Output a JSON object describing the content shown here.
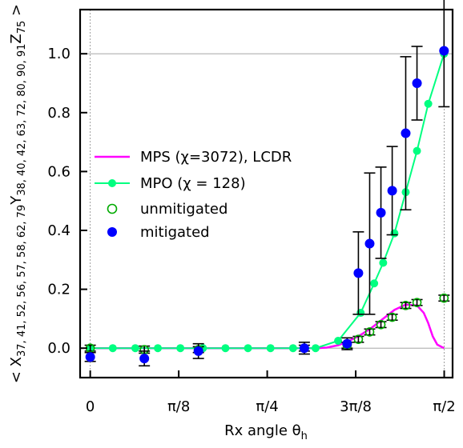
{
  "chart_data": {
    "type": "line",
    "title": "",
    "xlabel": "Rx angle θ_h",
    "ylabel": "< X_{37, 41, 52, 56, 57, 58, 62, 79} Y_{38, 40, 42, 63, 72, 80, 90, 91} Z_{75} >",
    "ylabel_parts": {
      "open": "< X",
      "x_sub": "37, 41, 52, 56, 57, 58, 62, 79",
      "y_main": "Y",
      "y_sub": "38, 40, 42, 63, 72, 80, 90, 91",
      "z_main": "Z",
      "z_sub": "75",
      "close": " >"
    },
    "xlabel_parts": {
      "main": "Rx angle θ",
      "sub": "h"
    },
    "xlim": [
      -0.045,
      1.608
    ],
    "ylim": [
      -0.1,
      1.15
    ],
    "x_ticks": [
      {
        "value": 0,
        "label": "0"
      },
      {
        "value": 0.3927,
        "label": "π/8"
      },
      {
        "value": 0.7854,
        "label": "π/4"
      },
      {
        "value": 1.1781,
        "label": "3π/8"
      },
      {
        "value": 1.5708,
        "label": "π/2"
      }
    ],
    "y_ticks": [
      {
        "value": 0.0,
        "label": "0.0"
      },
      {
        "value": 0.2,
        "label": "0.2"
      },
      {
        "value": 0.4,
        "label": "0.4"
      },
      {
        "value": 0.6,
        "label": "0.6"
      },
      {
        "value": 0.8,
        "label": "0.8"
      },
      {
        "value": 1.0,
        "label": "1.0"
      }
    ],
    "reference_lines": {
      "horizontal": [
        0.0,
        1.0
      ],
      "vertical": [
        0,
        1.5708
      ]
    },
    "legend_position": "center-left",
    "series": [
      {
        "name": "MPS (χ=3072), LCDR",
        "kind": "line",
        "color": "#ff00ff",
        "x": [
          0,
          0.1,
          0.2,
          0.3,
          0.4,
          0.5,
          0.6,
          0.7,
          0.8,
          0.9,
          1.0,
          1.05,
          1.1,
          1.15,
          1.2,
          1.25,
          1.3,
          1.35,
          1.4,
          1.45,
          1.48,
          1.5,
          1.52,
          1.54,
          1.57
        ],
        "y": [
          0,
          0,
          0,
          0,
          0,
          0,
          0,
          0,
          0,
          0,
          0,
          0.002,
          0.01,
          0.025,
          0.045,
          0.07,
          0.1,
          0.13,
          0.148,
          0.145,
          0.12,
          0.085,
          0.04,
          0.012,
          0.0
        ]
      },
      {
        "name": "MPO (χ =  128)",
        "kind": "line-markers",
        "color": "#00ff80",
        "x": [
          0,
          0.1,
          0.2,
          0.3,
          0.4,
          0.5,
          0.6,
          0.7,
          0.8,
          0.9,
          1.0,
          1.1,
          1.2,
          1.26,
          1.3,
          1.35,
          1.4,
          1.45,
          1.5,
          1.57
        ],
        "y": [
          0,
          0,
          0,
          0,
          0,
          0,
          0,
          0,
          0,
          0,
          0,
          0.025,
          0.12,
          0.22,
          0.29,
          0.39,
          0.53,
          0.67,
          0.83,
          1.0
        ]
      },
      {
        "name": "unmitigated",
        "kind": "markers-open",
        "color": "#00aa00",
        "x": [
          0,
          0.24,
          0.48,
          0.95,
          1.14,
          1.19,
          1.24,
          1.29,
          1.34,
          1.4,
          1.45,
          1.57
        ],
        "y": [
          0,
          -0.005,
          -0.005,
          0,
          0.01,
          0.03,
          0.055,
          0.08,
          0.105,
          0.145,
          0.155,
          0.17
        ],
        "err": [
          0.01,
          0.012,
          0.01,
          0.01,
          0.01,
          0.01,
          0.01,
          0.01,
          0.01,
          0.01,
          0.01,
          0.01
        ]
      },
      {
        "name": "mitigated",
        "kind": "markers",
        "color": "#0000ff",
        "x": [
          0,
          0.24,
          0.48,
          0.95,
          1.14,
          1.19,
          1.24,
          1.29,
          1.34,
          1.4,
          1.45,
          1.57
        ],
        "y": [
          -0.03,
          -0.035,
          -0.01,
          0,
          0.015,
          0.255,
          0.355,
          0.46,
          0.535,
          0.73,
          0.9,
          1.01
        ],
        "err": [
          0.015,
          0.025,
          0.025,
          0.02,
          0.02,
          0.14,
          0.24,
          0.155,
          0.15,
          0.26,
          0.125,
          0.19
        ]
      }
    ]
  }
}
